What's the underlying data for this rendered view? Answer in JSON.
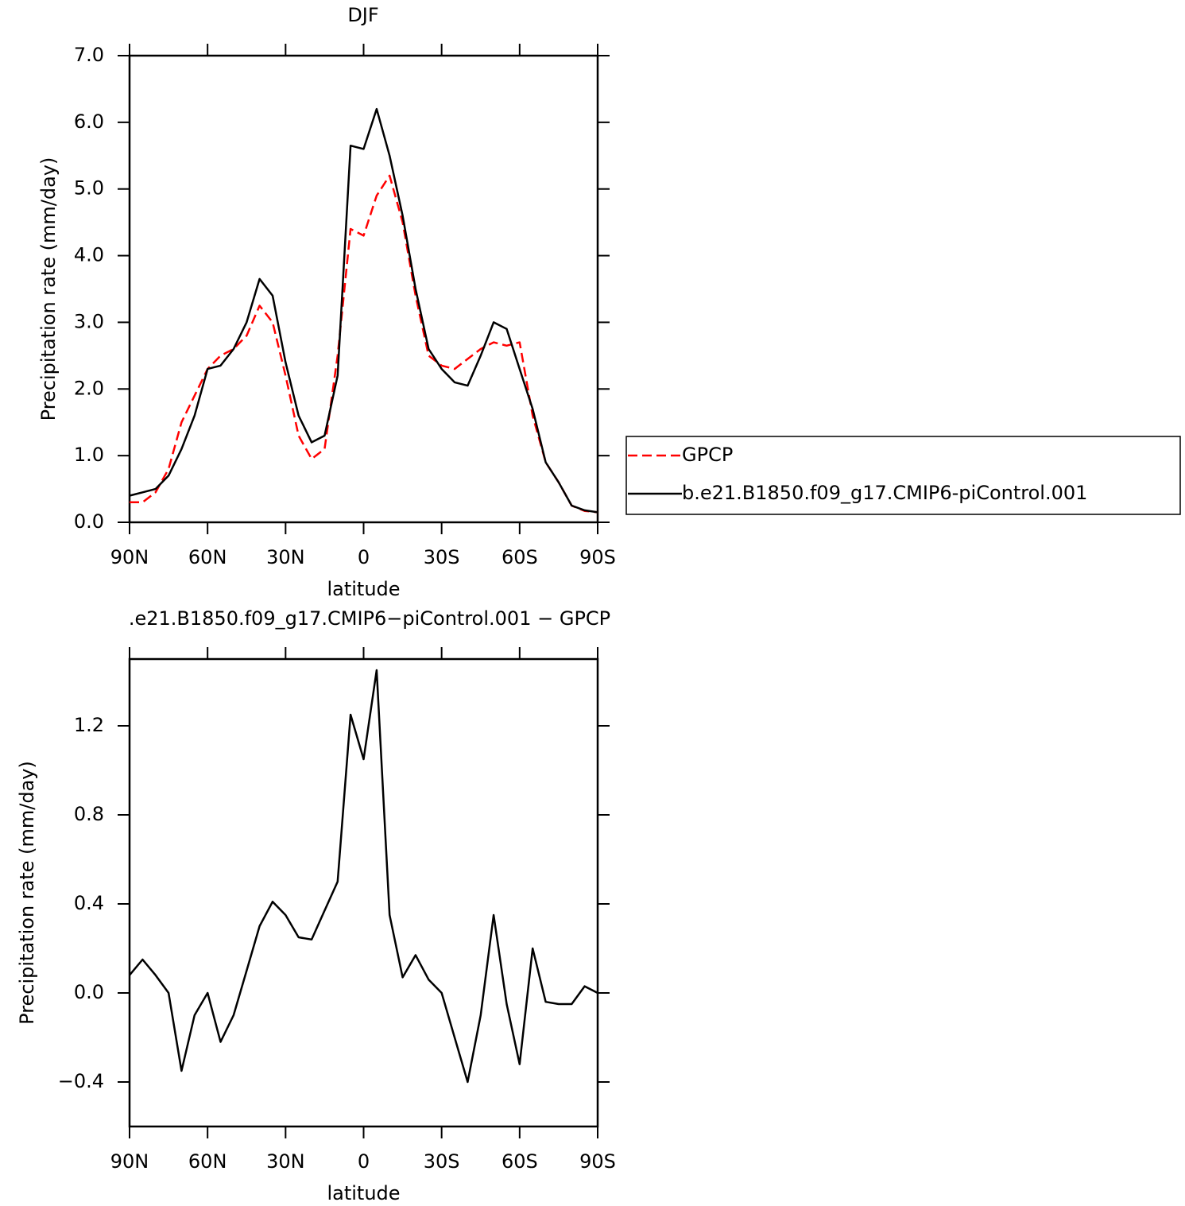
{
  "chart_data": [
    {
      "type": "line",
      "title": "DJF",
      "xlabel": "latitude",
      "ylabel": "Precipitation rate (mm/day)",
      "x": [
        90,
        85,
        80,
        75,
        70,
        65,
        60,
        55,
        50,
        45,
        40,
        35,
        30,
        25,
        20,
        15,
        10,
        5,
        0,
        -5,
        -10,
        -15,
        -20,
        -25,
        -30,
        -35,
        -40,
        -45,
        -50,
        -55,
        -60,
        -65,
        -70,
        -75,
        -80,
        -85,
        -90
      ],
      "xlim": [
        90,
        -90
      ],
      "xticks": [
        {
          "value": 90,
          "label": "90N"
        },
        {
          "value": 60,
          "label": "60N"
        },
        {
          "value": 30,
          "label": "30N"
        },
        0,
        {
          "value": -30,
          "label": "30S"
        },
        {
          "value": -60,
          "label": "60S"
        },
        {
          "value": -90,
          "label": "90S"
        }
      ],
      "ylim": [
        0,
        7
      ],
      "yticks": [
        {
          "value": 0,
          "label": "0.0"
        },
        {
          "value": 1,
          "label": "1.0"
        },
        {
          "value": 2,
          "label": "2.0"
        },
        {
          "value": 3,
          "label": "3.0"
        },
        {
          "value": 4,
          "label": "4.0"
        },
        {
          "value": 5,
          "label": "5.0"
        },
        {
          "value": 6,
          "label": "6.0"
        },
        {
          "value": 7,
          "label": "7.0"
        }
      ],
      "legend": "right",
      "series": [
        {
          "name": "GPCP",
          "color": "#ff0000",
          "line_style": "dashed",
          "values": [
            0.3,
            0.3,
            0.45,
            0.8,
            1.5,
            1.9,
            2.3,
            2.5,
            2.6,
            2.8,
            3.25,
            3.0,
            2.2,
            1.3,
            0.95,
            1.1,
            2.5,
            4.4,
            4.3,
            4.9,
            5.2,
            4.5,
            3.4,
            2.5,
            2.35,
            2.3,
            2.45,
            2.6,
            2.7,
            2.65,
            2.7,
            1.6,
            0.9,
            0.6,
            0.25,
            0.17,
            0.15
          ]
        },
        {
          "name": "b.e21.B1850.f09_g17.CMIP6-piControl.001",
          "color": "#000000",
          "line_style": "solid",
          "values": [
            0.4,
            0.45,
            0.5,
            0.7,
            1.1,
            1.6,
            2.3,
            2.35,
            2.6,
            3.0,
            3.65,
            3.4,
            2.4,
            1.6,
            1.2,
            1.3,
            2.2,
            5.65,
            5.6,
            6.2,
            5.5,
            4.6,
            3.5,
            2.6,
            2.3,
            2.1,
            2.05,
            2.5,
            3.0,
            2.9,
            2.3,
            1.7,
            0.9,
            0.6,
            0.25,
            0.18,
            0.15
          ]
        }
      ]
    },
    {
      "type": "line",
      "title": ".e21.B1850.f09_g17.CMIP6−piControl.001 − GPCP",
      "xlabel": "latitude",
      "ylabel": "Precipitation rate (mm/day)",
      "x": [
        90,
        85,
        80,
        75,
        70,
        65,
        60,
        55,
        50,
        45,
        40,
        35,
        30,
        25,
        20,
        15,
        10,
        5,
        0,
        -5,
        -10,
        -15,
        -20,
        -25,
        -30,
        -35,
        -40,
        -45,
        -50,
        -55,
        -60,
        -65,
        -70,
        -75,
        -80,
        -85,
        -90
      ],
      "xlim": [
        90,
        -90
      ],
      "xticks": [
        {
          "value": 90,
          "label": "90N"
        },
        {
          "value": 60,
          "label": "60N"
        },
        {
          "value": 30,
          "label": "30N"
        },
        0,
        {
          "value": -30,
          "label": "30S"
        },
        {
          "value": -60,
          "label": "60S"
        },
        {
          "value": -90,
          "label": "90S"
        }
      ],
      "ylim": [
        -0.6,
        1.5
      ],
      "yticks": [
        {
          "value": -0.4,
          "label": "−0.4"
        },
        {
          "value": 0,
          "label": "0.0"
        },
        0.4,
        0.8,
        1.2
      ],
      "series": [
        {
          "color": "#000000",
          "line_style": "solid",
          "values": [
            0.08,
            0.15,
            0.08,
            0.0,
            -0.35,
            -0.1,
            0.0,
            -0.22,
            -0.1,
            0.1,
            0.3,
            0.41,
            0.35,
            0.25,
            0.24,
            0.37,
            0.5,
            1.25,
            1.05,
            1.45,
            0.35,
            0.07,
            0.17,
            0.06,
            0.0,
            -0.2,
            -0.4,
            -0.1,
            0.35,
            -0.05,
            -0.32,
            0.2,
            -0.04,
            -0.05,
            -0.05,
            0.03,
            0.0
          ]
        }
      ]
    }
  ]
}
